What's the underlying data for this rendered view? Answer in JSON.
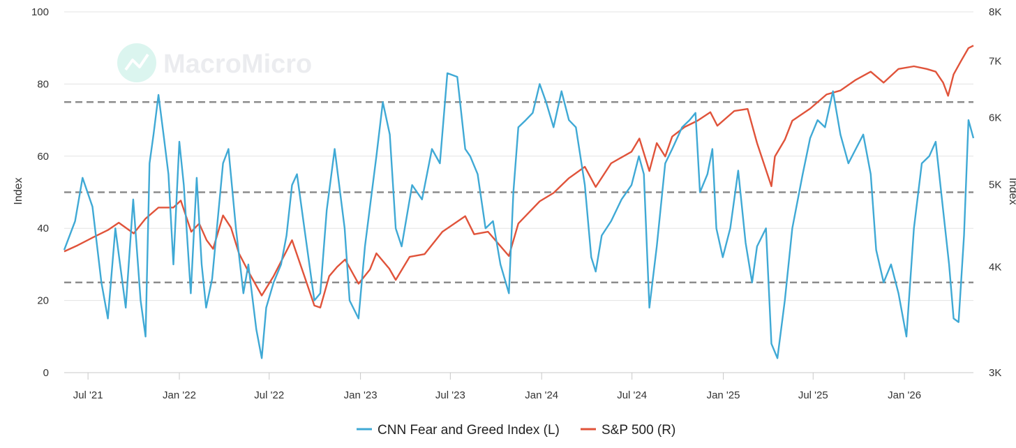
{
  "watermark": "MacroMicro",
  "colors": {
    "fear_greed": "#3fa9d5",
    "sp500": "#e0533a",
    "threshold": "#8c8c8c",
    "grid": "#e3e3e3",
    "watermark": "#a6e3d6"
  },
  "chart_data": {
    "type": "line",
    "title": "",
    "x_dates_range": [
      "2021-05-14",
      "2026-05-20"
    ],
    "x_tick_labels": [
      "Jul '21",
      "Jan '22",
      "Jul '22",
      "Jan '23",
      "Jul '23",
      "Jan '24",
      "Jul '24",
      "Jan '25",
      "Jul '25",
      "Jan '26"
    ],
    "x_tick_dates": [
      "2021-07-01",
      "2022-01-01",
      "2022-07-01",
      "2023-01-01",
      "2023-07-01",
      "2024-01-01",
      "2024-07-01",
      "2025-01-01",
      "2025-07-01",
      "2026-01-01"
    ],
    "left_axis": {
      "label": "Index",
      "ylim": [
        0,
        100
      ],
      "ticks": [
        0,
        20,
        40,
        60,
        80,
        100
      ]
    },
    "right_axis": {
      "label": "Index",
      "scale": "log",
      "ylim": [
        3000,
        8000
      ],
      "ticks": [
        3000,
        4000,
        5000,
        6000,
        7000,
        8000
      ],
      "tick_labels": [
        "3K",
        "4K",
        "5K",
        "6K",
        "7K",
        "8K"
      ]
    },
    "reference_lines_left": [
      25,
      50,
      75
    ],
    "series": [
      {
        "name": "CNN Fear and Greed Index (L)",
        "axis": "left",
        "dates": [
          "2021-05-14",
          "2021-06-05",
          "2021-06-20",
          "2021-07-10",
          "2021-07-28",
          "2021-08-10",
          "2021-08-25",
          "2021-09-15",
          "2021-09-30",
          "2021-10-15",
          "2021-10-25",
          "2021-11-02",
          "2021-11-10",
          "2021-11-20",
          "2021-12-01",
          "2021-12-10",
          "2021-12-20",
          "2022-01-01",
          "2022-01-10",
          "2022-01-24",
          "2022-02-05",
          "2022-02-15",
          "2022-02-24",
          "2022-03-08",
          "2022-03-30",
          "2022-04-10",
          "2022-04-25",
          "2022-05-10",
          "2022-05-20",
          "2022-06-05",
          "2022-06-16",
          "2022-06-25",
          "2022-07-10",
          "2022-07-25",
          "2022-08-05",
          "2022-08-16",
          "2022-08-26",
          "2022-09-10",
          "2022-09-30",
          "2022-10-12",
          "2022-10-25",
          "2022-11-10",
          "2022-11-30",
          "2022-12-10",
          "2022-12-28",
          "2023-01-10",
          "2023-02-02",
          "2023-02-15",
          "2023-03-01",
          "2023-03-13",
          "2023-03-25",
          "2023-04-15",
          "2023-05-05",
          "2023-05-25",
          "2023-06-10",
          "2023-06-25",
          "2023-07-15",
          "2023-07-31",
          "2023-08-10",
          "2023-08-25",
          "2023-09-10",
          "2023-09-25",
          "2023-10-10",
          "2023-10-27",
          "2023-11-05",
          "2023-11-15",
          "2023-11-30",
          "2023-12-14",
          "2023-12-28",
          "2024-01-10",
          "2024-01-25",
          "2024-02-10",
          "2024-02-25",
          "2024-03-10",
          "2024-03-28",
          "2024-04-10",
          "2024-04-19",
          "2024-05-01",
          "2024-05-20",
          "2024-06-10",
          "2024-06-30",
          "2024-07-15",
          "2024-07-25",
          "2024-08-05",
          "2024-08-20",
          "2024-09-06",
          "2024-09-20",
          "2024-10-10",
          "2024-10-25",
          "2024-11-06",
          "2024-11-15",
          "2024-11-30",
          "2024-12-10",
          "2024-12-18",
          "2024-12-31",
          "2025-01-15",
          "2025-01-31",
          "2025-02-15",
          "2025-02-28",
          "2025-03-10",
          "2025-03-28",
          "2025-04-08",
          "2025-04-20",
          "2025-05-05",
          "2025-05-20",
          "2025-06-10",
          "2025-06-25",
          "2025-07-10",
          "2025-07-25",
          "2025-08-10",
          "2025-08-25",
          "2025-09-10",
          "2025-09-25",
          "2025-10-10",
          "2025-10-25",
          "2025-11-05",
          "2025-11-20",
          "2025-12-05",
          "2025-12-20",
          "2026-01-05",
          "2026-01-20",
          "2026-02-05",
          "2026-02-20",
          "2026-03-05",
          "2026-03-20",
          "2026-04-01",
          "2026-04-10",
          "2026-04-20",
          "2026-05-01",
          "2026-05-10",
          "2026-05-20"
        ],
        "values": [
          34,
          42,
          54,
          46,
          25,
          15,
          40,
          18,
          48,
          20,
          10,
          58,
          66,
          77,
          65,
          55,
          30,
          64,
          52,
          22,
          54,
          30,
          18,
          26,
          58,
          62,
          40,
          22,
          30,
          12,
          4,
          18,
          25,
          30,
          38,
          52,
          55,
          40,
          20,
          22,
          45,
          62,
          40,
          20,
          15,
          35,
          60,
          75,
          66,
          40,
          35,
          52,
          48,
          62,
          58,
          83,
          82,
          62,
          60,
          55,
          40,
          42,
          30,
          22,
          50,
          68,
          70,
          72,
          80,
          75,
          68,
          78,
          70,
          68,
          52,
          32,
          28,
          38,
          42,
          48,
          52,
          60,
          55,
          18,
          35,
          58,
          62,
          68,
          70,
          72,
          50,
          55,
          62,
          40,
          32,
          40,
          56,
          36,
          25,
          35,
          40,
          8,
          4,
          20,
          40,
          55,
          65,
          70,
          68,
          78,
          66,
          58,
          62,
          66,
          55,
          34,
          25,
          30,
          22,
          10,
          40,
          58,
          60,
          64,
          45,
          30,
          15,
          14,
          38,
          70,
          65
        ]
      },
      {
        "name": "S&P 500 (R)",
        "axis": "right",
        "dates": [
          "2021-05-14",
          "2021-06-10",
          "2021-07-10",
          "2021-08-10",
          "2021-09-01",
          "2021-10-01",
          "2021-10-25",
          "2021-11-20",
          "2021-12-20",
          "2022-01-04",
          "2022-01-25",
          "2022-02-10",
          "2022-02-25",
          "2022-03-10",
          "2022-03-30",
          "2022-04-15",
          "2022-05-01",
          "2022-05-20",
          "2022-06-16",
          "2022-07-10",
          "2022-08-16",
          "2022-09-10",
          "2022-09-30",
          "2022-10-12",
          "2022-10-30",
          "2022-11-15",
          "2022-12-01",
          "2022-12-28",
          "2023-01-20",
          "2023-02-02",
          "2023-02-28",
          "2023-03-13",
          "2023-04-10",
          "2023-05-10",
          "2023-06-15",
          "2023-07-31",
          "2023-08-18",
          "2023-09-15",
          "2023-10-27",
          "2023-11-15",
          "2023-12-28",
          "2024-01-25",
          "2024-02-25",
          "2024-03-28",
          "2024-04-19",
          "2024-05-20",
          "2024-06-30",
          "2024-07-16",
          "2024-08-05",
          "2024-08-20",
          "2024-09-06",
          "2024-09-20",
          "2024-10-15",
          "2024-11-10",
          "2024-12-06",
          "2024-12-20",
          "2025-01-23",
          "2025-02-19",
          "2025-03-10",
          "2025-04-08",
          "2025-04-15",
          "2025-05-05",
          "2025-05-20",
          "2025-06-25",
          "2025-07-28",
          "2025-08-25",
          "2025-09-25",
          "2025-10-25",
          "2025-11-20",
          "2025-12-20",
          "2026-01-20",
          "2026-02-15",
          "2026-03-05",
          "2026-03-20",
          "2026-03-30",
          "2026-04-10",
          "2026-04-25",
          "2026-05-10",
          "2026-05-20"
        ],
        "values": [
          4170,
          4240,
          4330,
          4420,
          4510,
          4380,
          4560,
          4700,
          4700,
          4790,
          4400,
          4500,
          4300,
          4200,
          4600,
          4450,
          4150,
          3950,
          3700,
          3900,
          4300,
          3900,
          3600,
          3580,
          3900,
          4000,
          4080,
          3820,
          3970,
          4150,
          3980,
          3860,
          4110,
          4140,
          4400,
          4590,
          4370,
          4400,
          4120,
          4500,
          4780,
          4890,
          5090,
          5250,
          4970,
          5300,
          5470,
          5670,
          5190,
          5600,
          5400,
          5700,
          5850,
          5950,
          6090,
          5870,
          6110,
          6144,
          5600,
          4980,
          5400,
          5650,
          5950,
          6150,
          6390,
          6460,
          6650,
          6800,
          6600,
          6850,
          6900,
          6850,
          6800,
          6600,
          6368,
          6750,
          7000,
          7250,
          7300
        ]
      }
    ]
  },
  "legend": [
    {
      "label": "CNN Fear and Greed Index (L)",
      "color": "#3fa9d5"
    },
    {
      "label": "S&P 500 (R)",
      "color": "#e0533a"
    }
  ]
}
